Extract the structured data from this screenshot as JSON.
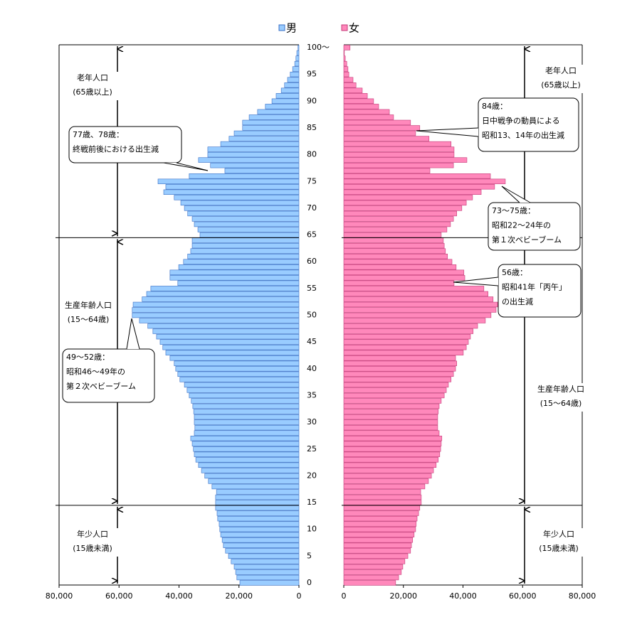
{
  "chart_data": {
    "type": "pyramid",
    "categories": [
      0,
      null,
      null,
      null,
      null,
      5,
      null,
      null,
      null,
      null,
      10,
      null,
      null,
      null,
      null,
      15,
      null,
      null,
      null,
      null,
      20,
      null,
      null,
      null,
      null,
      25,
      null,
      null,
      null,
      null,
      30,
      null,
      null,
      null,
      null,
      35,
      null,
      null,
      null,
      null,
      40,
      null,
      null,
      null,
      null,
      45,
      null,
      null,
      null,
      null,
      50,
      null,
      null,
      null,
      null,
      55,
      null,
      null,
      null,
      null,
      60,
      null,
      null,
      null,
      null,
      65,
      null,
      null,
      null,
      null,
      70,
      null,
      null,
      null,
      null,
      75,
      null,
      null,
      null,
      null,
      80,
      null,
      null,
      null,
      null,
      85,
      null,
      null,
      null,
      null,
      90,
      null,
      null,
      null,
      null,
      95,
      null,
      null,
      null,
      null,
      "100～"
    ],
    "series": [
      {
        "name": "男",
        "color": "#99ccff",
        "stroke": "#3a6fc4",
        "side": "left",
        "values": [
          19700,
          20700,
          21100,
          21600,
          22600,
          23500,
          24500,
          25200,
          25600,
          26100,
          26400,
          26600,
          27100,
          27300,
          27800,
          27800,
          27800,
          27500,
          29000,
          30200,
          31400,
          32500,
          33500,
          34400,
          34900,
          35200,
          35600,
          36100,
          34900,
          34700,
          34900,
          34900,
          35100,
          35400,
          35900,
          36600,
          37300,
          38200,
          39700,
          40400,
          41100,
          41600,
          43000,
          44400,
          45400,
          46300,
          47500,
          48700,
          50400,
          53200,
          55600,
          55600,
          55300,
          52300,
          50800,
          49400,
          40400,
          43000,
          43000,
          40100,
          38500,
          37100,
          36100,
          35600,
          35600,
          33000,
          33700,
          34900,
          35600,
          37100,
          38200,
          39400,
          41600,
          45100,
          44400,
          47000,
          36600,
          24700,
          29500,
          33500,
          30400,
          30400,
          26100,
          23300,
          21600,
          18800,
          18800,
          16600,
          13800,
          11200,
          9000,
          7600,
          5900,
          4800,
          3800,
          2900,
          2100,
          1400,
          1000,
          700,
          300
        ]
      },
      {
        "name": "女",
        "color": "#ff88bb",
        "stroke": "#c43a78",
        "side": "right",
        "values": [
          17400,
          18400,
          19300,
          19800,
          20500,
          21500,
          22400,
          22700,
          23100,
          23600,
          24100,
          24300,
          24600,
          25100,
          25500,
          26000,
          26000,
          25800,
          27200,
          28400,
          29400,
          30100,
          31000,
          31700,
          32200,
          32500,
          32700,
          32900,
          32000,
          31500,
          31500,
          31500,
          31700,
          32000,
          32700,
          33700,
          34400,
          35100,
          36000,
          36800,
          37500,
          37900,
          37500,
          40100,
          41100,
          41800,
          42500,
          43400,
          44900,
          47500,
          49400,
          51100,
          51600,
          50100,
          48400,
          47000,
          37000,
          40600,
          40300,
          37700,
          36300,
          34800,
          34100,
          33700,
          33400,
          32700,
          34600,
          35800,
          36800,
          37900,
          39600,
          41100,
          43200,
          46100,
          50600,
          54200,
          49200,
          28900,
          36800,
          41300,
          37000,
          37000,
          36000,
          28600,
          24100,
          25500,
          22400,
          16700,
          15300,
          11700,
          10000,
          7900,
          6200,
          4100,
          3100,
          1700,
          1400,
          1000,
          500,
          200,
          2100
        ]
      }
    ],
    "xlim": [
      0,
      80000
    ],
    "xticks": [
      0,
      {
        "value": 20000,
        "label": "20,000"
      },
      {
        "value": 40000,
        "label": "40,000"
      },
      {
        "value": 60000,
        "label": "60,000"
      },
      {
        "value": 80000,
        "label": "80,000"
      }
    ],
    "group_boundaries": [
      15,
      65
    ],
    "age_groups": [
      {
        "name": "老年人口",
        "range": "(65歳以上)"
      },
      {
        "name": "生産年齢人口",
        "range": "(15～64歳)"
      },
      {
        "name": "年少人口",
        "range": "(15歳未満)"
      }
    ],
    "annotations": [
      {
        "lines": [
          "77歳、78歳：",
          "終戦前後における出生減"
        ]
      },
      {
        "lines": [
          "84歳：",
          "日中戦争の動員による",
          "昭和13、14年の出生減"
        ]
      },
      {
        "lines": [
          "73～75歳：",
          "昭和22～24年の",
          "第１次ベビーブーム"
        ]
      },
      {
        "lines": [
          "56歳：",
          "昭和41年「丙午」",
          "の出生減"
        ]
      },
      {
        "lines": [
          "49～52歳：",
          "昭和46～49年の",
          "第２次ベビーブーム"
        ]
      }
    ]
  }
}
